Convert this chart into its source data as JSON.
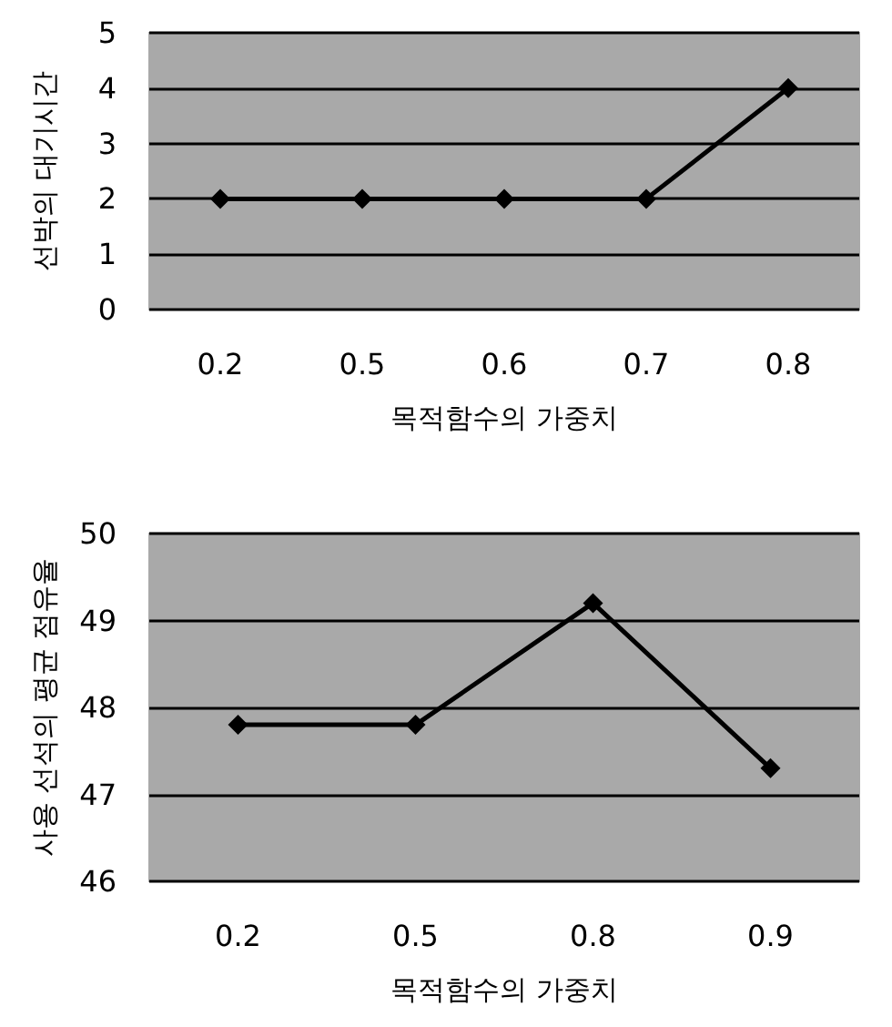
{
  "chart_data": [
    {
      "type": "line",
      "categories": [
        "0.2",
        "0.5",
        "0.6",
        "0.7",
        "0.8"
      ],
      "series": [
        {
          "color": "#000000",
          "values": [
            2,
            2,
            2,
            2,
            4
          ]
        }
      ],
      "xlabel": "목적함수의 가중치",
      "ylabel": "선박의 대기시간",
      "ylim": [
        0,
        5
      ],
      "yticks": [
        0,
        1,
        2,
        3,
        4,
        5
      ],
      "grid": "y",
      "marker": "diamond",
      "line_style": "solid"
    },
    {
      "type": "line",
      "categories": [
        "0.2",
        "0.5",
        "0.8",
        "0.9"
      ],
      "series": [
        {
          "color": "#000000",
          "values": [
            47.8,
            47.8,
            49.2,
            47.3
          ]
        }
      ],
      "xlabel": "목적함수의 가중치",
      "ylabel": "사용 선석의 평균 점유율",
      "ylim": [
        46,
        50
      ],
      "yticks": [
        46,
        47,
        48,
        49,
        50
      ],
      "grid": "y",
      "marker": "diamond",
      "line_style": "solid"
    }
  ]
}
